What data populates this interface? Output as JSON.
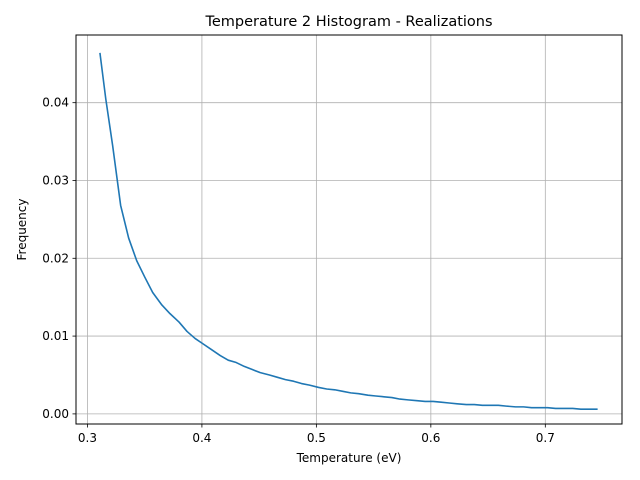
{
  "chart_data": {
    "type": "line",
    "title": "Temperature 2 Histogram - Realizations",
    "xlabel": "Temperature (eV)",
    "ylabel": "Frequency",
    "xlim": [
      0.29,
      0.767
    ],
    "ylim": [
      -0.0013,
      0.0487
    ],
    "xticks": [
      0.3,
      0.4,
      0.5,
      0.6,
      0.7
    ],
    "xtick_labels": [
      "0.3",
      "0.4",
      "0.5",
      "0.6",
      "0.7"
    ],
    "yticks": [
      0.0,
      0.01,
      0.02,
      0.03,
      0.04
    ],
    "ytick_labels": [
      "0.00",
      "0.01",
      "0.02",
      "0.03",
      "0.04"
    ],
    "grid": true,
    "legend": "none",
    "series": [
      {
        "color": "#1f77b4",
        "x": [
          0.311,
          0.316,
          0.322,
          0.329,
          0.336,
          0.343,
          0.35,
          0.357,
          0.365,
          0.372,
          0.38,
          0.387,
          0.394,
          0.401,
          0.408,
          0.416,
          0.423,
          0.43,
          0.437,
          0.444,
          0.451,
          0.459,
          0.466,
          0.473,
          0.48,
          0.487,
          0.494,
          0.502,
          0.509,
          0.516,
          0.523,
          0.53,
          0.537,
          0.545,
          0.552,
          0.559,
          0.566,
          0.573,
          0.58,
          0.588,
          0.595,
          0.602,
          0.609,
          0.616,
          0.623,
          0.631,
          0.638,
          0.645,
          0.652,
          0.659,
          0.666,
          0.674,
          0.681,
          0.688,
          0.695,
          0.702,
          0.709,
          0.717,
          0.724,
          0.731,
          0.738,
          0.745
        ],
        "y": [
          0.0463,
          0.0405,
          0.0345,
          0.0268,
          0.0226,
          0.0197,
          0.0176,
          0.0156,
          0.014,
          0.0129,
          0.0118,
          0.0106,
          0.0097,
          0.009,
          0.0083,
          0.0075,
          0.0069,
          0.0066,
          0.0061,
          0.0057,
          0.0053,
          0.005,
          0.0047,
          0.0044,
          0.0042,
          0.0039,
          0.0037,
          0.0034,
          0.0032,
          0.0031,
          0.0029,
          0.0027,
          0.0026,
          0.0024,
          0.0023,
          0.0022,
          0.0021,
          0.0019,
          0.0018,
          0.0017,
          0.0016,
          0.0016,
          0.0015,
          0.0014,
          0.0013,
          0.0012,
          0.0012,
          0.0011,
          0.0011,
          0.0011,
          0.001,
          0.0009,
          0.0009,
          0.0008,
          0.0008,
          0.0008,
          0.0007,
          0.0007,
          0.0007,
          0.0006,
          0.0006,
          0.0006
        ]
      }
    ]
  }
}
